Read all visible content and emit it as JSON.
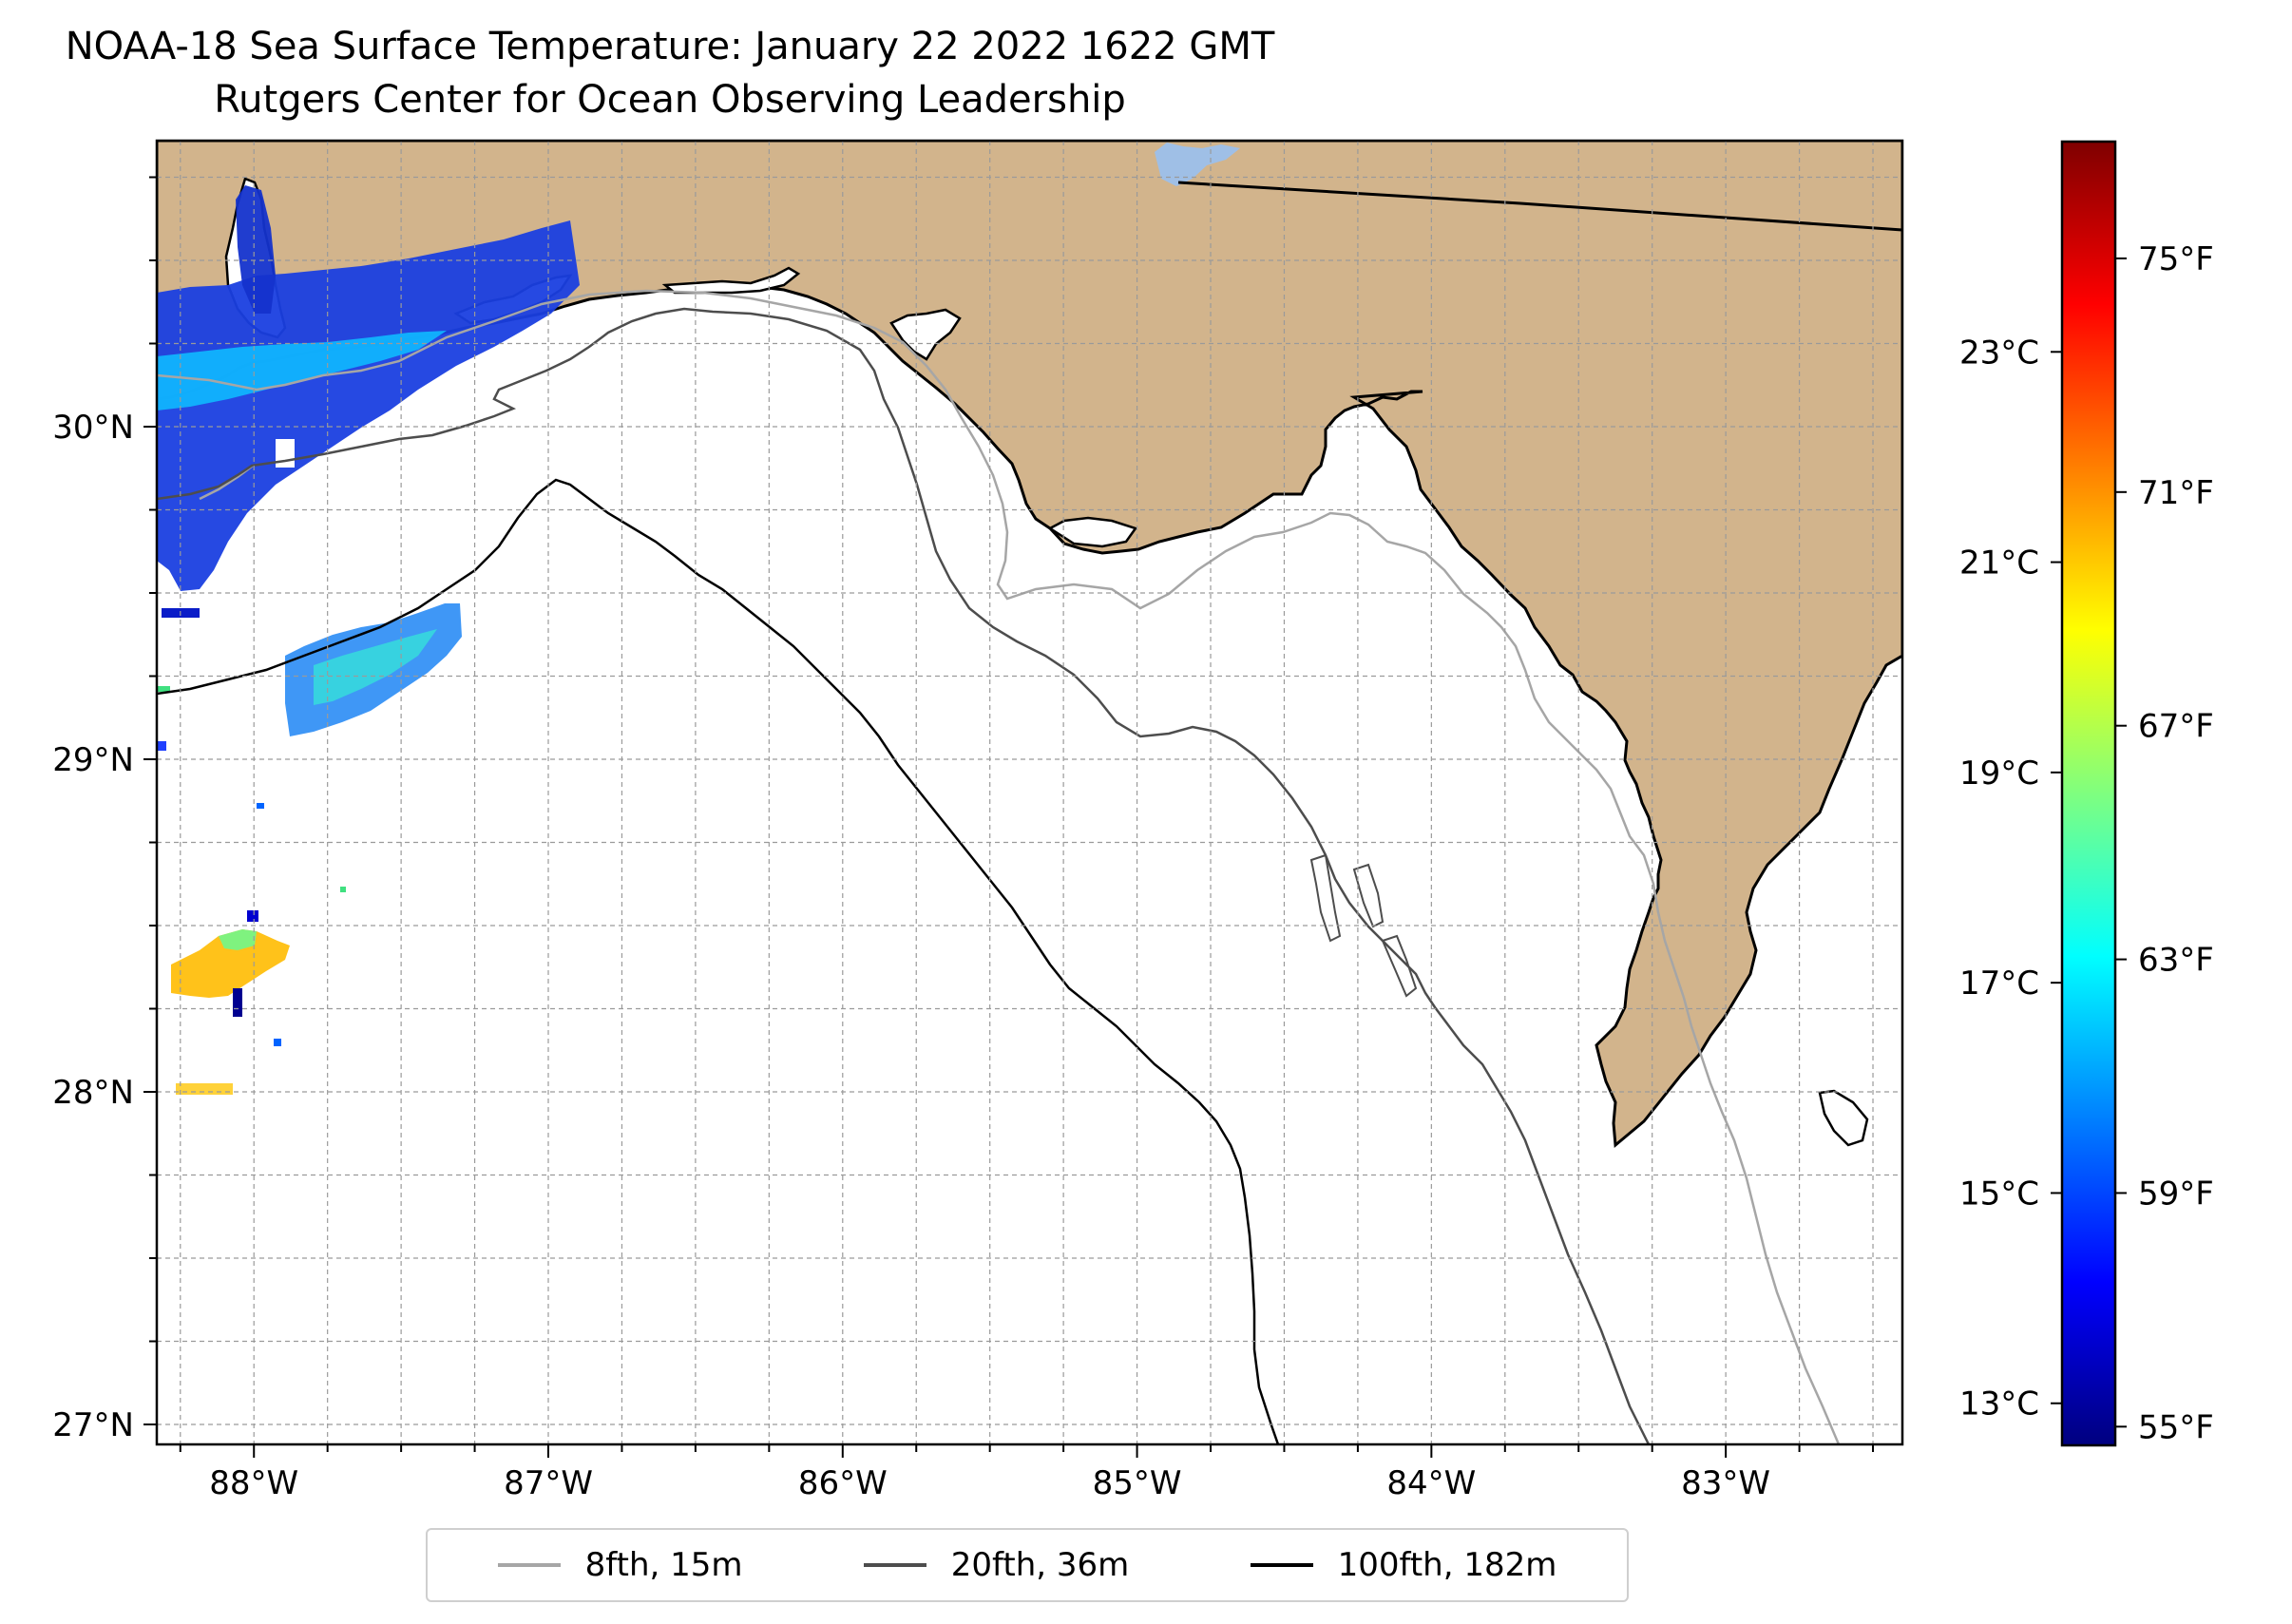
{
  "title": {
    "line1": "NOAA-18 Sea Surface Temperature: January 22 2022 1622 GMT",
    "line2": "Rutgers Center for Ocean Observing Leadership"
  },
  "map": {
    "lon_range": [
      -88.33,
      -82.4
    ],
    "lat_range": [
      26.94,
      30.86
    ],
    "lon_ticks": [
      {
        "value": -88,
        "label": "88°W"
      },
      {
        "value": -87,
        "label": "87°W"
      },
      {
        "value": -86,
        "label": "86°W"
      },
      {
        "value": -85,
        "label": "85°W"
      },
      {
        "value": -84,
        "label": "84°W"
      },
      {
        "value": -83,
        "label": "83°W"
      }
    ],
    "lat_ticks": [
      {
        "value": 30,
        "label": "30°N"
      },
      {
        "value": 29,
        "label": "29°N"
      },
      {
        "value": 28,
        "label": "28°N"
      },
      {
        "value": 27,
        "label": "27°N"
      }
    ],
    "grid_step_deg": 0.25,
    "colors": {
      "land": "#d2b48c",
      "ocean": "#ffffff",
      "lake": "#9fbfe6"
    }
  },
  "colorbar": {
    "celsius_range": [
      12.6,
      25.0
    ],
    "celsius_ticks": [
      {
        "value": 23,
        "label": "23°C"
      },
      {
        "value": 21,
        "label": "21°C"
      },
      {
        "value": 19,
        "label": "19°C"
      },
      {
        "value": 17,
        "label": "17°C"
      },
      {
        "value": 15,
        "label": "15°C"
      },
      {
        "value": 13,
        "label": "13°C"
      }
    ],
    "fahrenheit_ticks": [
      {
        "value": 75,
        "label": "75°F"
      },
      {
        "value": 71,
        "label": "71°F"
      },
      {
        "value": 67,
        "label": "67°F"
      },
      {
        "value": 63,
        "label": "63°F"
      },
      {
        "value": 59,
        "label": "59°F"
      },
      {
        "value": 55,
        "label": "55°F"
      }
    ],
    "colormap": "jet",
    "jet_stops": [
      "#00007f",
      "#0000ff",
      "#007fff",
      "#00ffff",
      "#7fff7f",
      "#ffff00",
      "#ff7f00",
      "#ff0000",
      "#7f0000"
    ]
  },
  "legend": {
    "items": [
      {
        "label": "8fth, 15m",
        "color": "#a6a6a6"
      },
      {
        "label": "20fth, 36m",
        "color": "#4d4d4d"
      },
      {
        "label": "100fth, 182m",
        "color": "#000000"
      }
    ]
  }
}
